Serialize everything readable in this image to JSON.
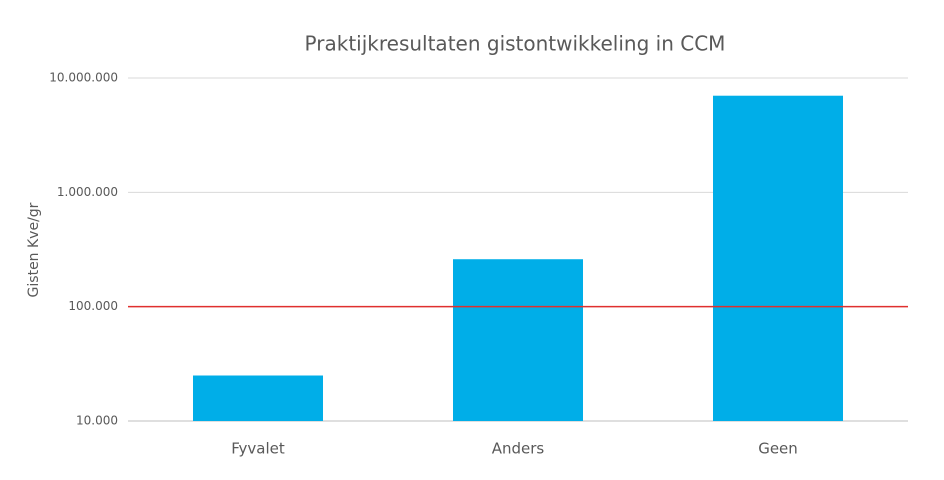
{
  "chart_data": {
    "type": "bar",
    "title": "Praktijkresultaten gistontwikkeling in CCM",
    "y_label": "Gisten Kve/gr",
    "categories": [
      "Fyvalet",
      "Anders",
      "Geen"
    ],
    "values": [
      25000,
      260000,
      7000000
    ],
    "color": "#00aee8",
    "log_scale": true,
    "ylim": [
      10000,
      10000000
    ],
    "yticks": [
      {
        "value": 10000,
        "label": "10.000"
      },
      {
        "value": 100000,
        "label": "100.000"
      },
      {
        "value": 1000000,
        "label": "1.000.000"
      },
      {
        "value": 10000000,
        "label": "10.000.000"
      }
    ],
    "grid": true,
    "threshold": 100000,
    "threshold_color": "#e0302e"
  }
}
